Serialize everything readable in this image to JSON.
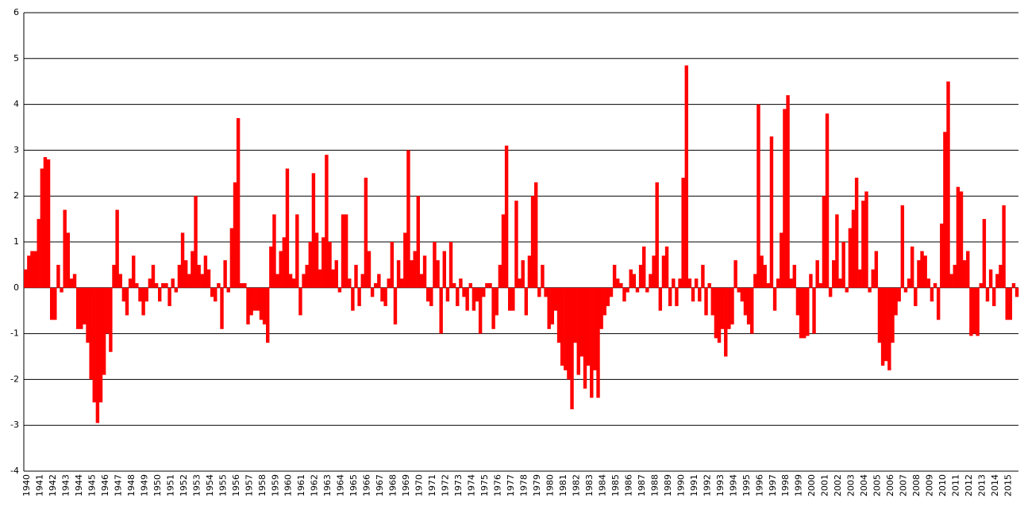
{
  "chart_data": {
    "type": "bar",
    "color": "#ff0000",
    "grid": true,
    "ylim": [
      -4,
      6
    ],
    "yticks": [
      -4,
      -3,
      -2,
      -1,
      0,
      1,
      2,
      3,
      4,
      5,
      6
    ],
    "categories": [
      "1940",
      null,
      null,
      null,
      "1941",
      null,
      null,
      null,
      "1942",
      null,
      null,
      null,
      "1943",
      null,
      null,
      null,
      "1944",
      null,
      null,
      null,
      "1945",
      null,
      null,
      null,
      "1946",
      null,
      null,
      null,
      "1947",
      null,
      null,
      null,
      "1948",
      null,
      null,
      null,
      "1949",
      null,
      null,
      null,
      "1950",
      null,
      null,
      null,
      "1951",
      null,
      null,
      null,
      "1952",
      null,
      null,
      null,
      "1953",
      null,
      null,
      null,
      "1954",
      null,
      null,
      null,
      "1955",
      null,
      null,
      null,
      "1956",
      null,
      null,
      null,
      "1957",
      null,
      null,
      null,
      "1958",
      null,
      null,
      null,
      "1959",
      null,
      null,
      null,
      "1960",
      null,
      null,
      null,
      "1961",
      null,
      null,
      null,
      "1962",
      null,
      null,
      null,
      "1963",
      null,
      null,
      null,
      "1964",
      null,
      null,
      null,
      "1965",
      null,
      null,
      null,
      "1966",
      null,
      null,
      null,
      "1967",
      null,
      null,
      null,
      "1968",
      null,
      null,
      null,
      "1969",
      null,
      null,
      null,
      "1970",
      null,
      null,
      null,
      "1971",
      null,
      null,
      null,
      "1972",
      null,
      null,
      null,
      "1973",
      null,
      null,
      null,
      "1974",
      null,
      null,
      null,
      "1975",
      null,
      null,
      null,
      "1976",
      null,
      null,
      null,
      "1977",
      null,
      null,
      null,
      "1978",
      null,
      null,
      null,
      "1979",
      null,
      null,
      null,
      "1980",
      null,
      null,
      null,
      "1981",
      null,
      null,
      null,
      "1982",
      null,
      null,
      null,
      "1983",
      null,
      null,
      null,
      "1984",
      null,
      null,
      null,
      "1985",
      null,
      null,
      null,
      "1986",
      null,
      null,
      null,
      "1987",
      null,
      null,
      null,
      "1988",
      null,
      null,
      null,
      "1989",
      null,
      null,
      null,
      "1990",
      null,
      null,
      null,
      "1991",
      null,
      null,
      null,
      "1992",
      null,
      null,
      null,
      "1993",
      null,
      null,
      null,
      "1994",
      null,
      null,
      null,
      "1995",
      null,
      null,
      null,
      "1996",
      null,
      null,
      null,
      "1997",
      null,
      null,
      null,
      "1998",
      null,
      null,
      null,
      "1999",
      null,
      null,
      null,
      "2000",
      null,
      null,
      null,
      "2001",
      null,
      null,
      null,
      "2002",
      null,
      null,
      null,
      "2003",
      null,
      null,
      null,
      "2004",
      null,
      null,
      null,
      "2005",
      null,
      null,
      null,
      "2006",
      null,
      null,
      null,
      "2007",
      null,
      null,
      null,
      "2008",
      null,
      null,
      null,
      "2009",
      null,
      null,
      null,
      "2010",
      null,
      null,
      null,
      "2011",
      null,
      null,
      null,
      "2012",
      null,
      null,
      null,
      "2013",
      null,
      null,
      null,
      "2014",
      null,
      null,
      null,
      "2015",
      null,
      null,
      null
    ],
    "values": [
      0.4,
      0.7,
      0.8,
      0.8,
      1.5,
      2.6,
      2.85,
      2.8,
      -0.7,
      -0.7,
      0.5,
      -0.1,
      1.7,
      1.2,
      0.2,
      0.3,
      -0.9,
      -0.9,
      -0.8,
      -1.2,
      -2.0,
      -2.5,
      -2.95,
      -2.5,
      -1.9,
      -1.0,
      -1.4,
      0.5,
      1.7,
      0.3,
      -0.3,
      -0.6,
      0.2,
      0.7,
      0.1,
      -0.3,
      -0.6,
      -0.3,
      0.2,
      0.5,
      0.1,
      -0.3,
      0.1,
      0.1,
      -0.4,
      0.2,
      -0.1,
      0.5,
      1.2,
      0.6,
      0.3,
      0.8,
      2.0,
      0.5,
      0.3,
      0.7,
      0.4,
      -0.2,
      -0.3,
      0.1,
      -0.9,
      0.6,
      -0.1,
      1.3,
      2.3,
      3.7,
      0.1,
      0.1,
      -0.8,
      -0.6,
      -0.5,
      -0.5,
      -0.7,
      -0.8,
      -1.2,
      0.9,
      1.6,
      0.3,
      0.8,
      1.1,
      2.6,
      0.3,
      0.2,
      1.6,
      -0.6,
      0.3,
      0.5,
      1.0,
      2.5,
      1.2,
      0.4,
      1.1,
      2.9,
      1.0,
      0.4,
      0.6,
      -0.1,
      1.6,
      1.6,
      0.2,
      -0.5,
      0.5,
      -0.4,
      0.3,
      2.4,
      0.8,
      -0.2,
      0.1,
      0.3,
      -0.3,
      -0.4,
      0.2,
      1.0,
      -0.8,
      0.6,
      0.2,
      1.2,
      3.0,
      0.6,
      0.8,
      2.0,
      0.3,
      0.7,
      -0.3,
      -0.4,
      1.0,
      0.6,
      -1.0,
      0.8,
      -0.3,
      1.0,
      0.1,
      -0.4,
      0.2,
      -0.2,
      -0.5,
      0.1,
      -0.5,
      -0.3,
      -1.0,
      -0.2,
      0.1,
      0.1,
      -0.9,
      -0.6,
      0.5,
      1.6,
      3.1,
      -0.5,
      -0.5,
      1.9,
      0.2,
      0.6,
      -0.6,
      0.7,
      2.0,
      2.3,
      -0.2,
      0.5,
      -0.2,
      -0.9,
      -0.8,
      -0.5,
      -1.2,
      -1.7,
      -1.8,
      -2.0,
      -2.65,
      -1.2,
      -1.9,
      -1.5,
      -2.2,
      -1.7,
      -2.4,
      -1.8,
      -2.4,
      -0.9,
      -0.6,
      -0.4,
      -0.2,
      0.5,
      0.2,
      0.1,
      -0.3,
      -0.1,
      0.4,
      0.3,
      -0.1,
      0.5,
      0.9,
      -0.1,
      0.3,
      0.7,
      2.3,
      -0.5,
      0.7,
      0.9,
      -0.4,
      0.2,
      -0.4,
      0.2,
      2.4,
      4.85,
      0.2,
      -0.3,
      0.2,
      -0.3,
      0.5,
      -0.6,
      0.1,
      -0.6,
      -1.1,
      -1.2,
      -0.9,
      -1.5,
      -0.9,
      -0.8,
      0.6,
      -0.1,
      -0.3,
      -0.6,
      -0.8,
      -1.0,
      0.3,
      4.0,
      0.7,
      0.5,
      0.1,
      3.3,
      -0.5,
      0.2,
      1.2,
      3.9,
      4.2,
      0.2,
      0.5,
      -0.6,
      -1.1,
      -1.1,
      -1.05,
      0.3,
      -1.0,
      0.6,
      0.1,
      2.0,
      3.8,
      -0.2,
      0.6,
      1.6,
      0.2,
      1.0,
      -0.1,
      1.3,
      1.7,
      2.4,
      0.4,
      1.9,
      2.1,
      -0.1,
      0.4,
      0.8,
      -1.2,
      -1.7,
      -1.6,
      -1.8,
      -1.2,
      -0.6,
      -0.3,
      1.8,
      -0.1,
      0.2,
      0.9,
      -0.4,
      0.6,
      0.8,
      0.7,
      0.2,
      -0.3,
      0.1,
      -0.7,
      1.4,
      3.4,
      4.5,
      0.3,
      0.5,
      2.2,
      2.1,
      0.6,
      0.8,
      -1.05,
      -1.0,
      -1.05,
      0.1,
      1.5,
      -0.3,
      0.4,
      -0.4,
      0.3,
      0.5,
      1.8,
      -0.7,
      -0.7,
      0.1,
      -0.2
    ]
  }
}
